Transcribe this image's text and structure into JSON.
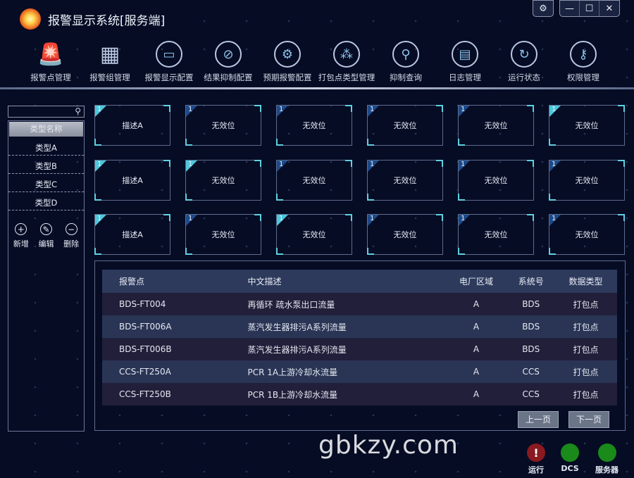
{
  "app": {
    "title": "报警显示系统[服务端]",
    "watermark": "gbkzy.com"
  },
  "window": {
    "settings": "⚙",
    "minimize": "—",
    "maximize": "☐",
    "close": "✕"
  },
  "toolbar": [
    {
      "label": "报警点管理",
      "icon": "alarm-light-icon",
      "glyph": "🚨"
    },
    {
      "label": "报警组管理",
      "icon": "grid-icon",
      "glyph": "▦"
    },
    {
      "label": "报警显示配置",
      "icon": "display-board-icon",
      "glyph": "▭"
    },
    {
      "label": "结果抑制配置",
      "icon": "prohibit-icon",
      "glyph": "⊘"
    },
    {
      "label": "预期报警配置",
      "icon": "gear-icon",
      "glyph": "⚙"
    },
    {
      "label": "打包点类型管理",
      "icon": "three-dots-icon",
      "glyph": "⁂"
    },
    {
      "label": "抑制查询",
      "icon": "search-icon",
      "glyph": "⚲"
    },
    {
      "label": "日志管理",
      "icon": "document-icon",
      "glyph": "▤"
    },
    {
      "label": "运行状态",
      "icon": "refresh-icon",
      "glyph": "↻"
    },
    {
      "label": "权限管理",
      "icon": "key-icon",
      "glyph": "⚷"
    }
  ],
  "sidebar": {
    "search_icon": "⚲",
    "header": "类型名称",
    "items": [
      "类型A",
      "类型B",
      "类型C",
      "类型D"
    ],
    "actions": [
      {
        "label": "新增",
        "glyph": "+",
        "icon": "plus-icon"
      },
      {
        "label": "编辑",
        "glyph": "✎",
        "icon": "pencil-icon"
      },
      {
        "label": "删除",
        "glyph": "−",
        "icon": "minus-icon"
      }
    ]
  },
  "cards": [
    [
      {
        "n": "1",
        "text": "描述A",
        "hl": true
      },
      {
        "n": "1",
        "text": "无效位",
        "hl": false
      },
      {
        "n": "1",
        "text": "无效位",
        "hl": false
      },
      {
        "n": "1",
        "text": "无效位",
        "hl": false
      },
      {
        "n": "1",
        "text": "无效位",
        "hl": false
      },
      {
        "n": "1",
        "text": "无效位",
        "hl": true
      }
    ],
    [
      {
        "n": "1",
        "text": "描述A",
        "hl": true
      },
      {
        "n": "1",
        "text": "无效位",
        "hl": true
      },
      {
        "n": "1",
        "text": "无效位",
        "hl": false
      },
      {
        "n": "1",
        "text": "无效位",
        "hl": false
      },
      {
        "n": "1",
        "text": "无效位",
        "hl": false
      },
      {
        "n": "1",
        "text": "无效位",
        "hl": false
      }
    ],
    [
      {
        "n": "1",
        "text": "描述A",
        "hl": true
      },
      {
        "n": "1",
        "text": "无效位",
        "hl": false
      },
      {
        "n": "1",
        "text": "无效位",
        "hl": true
      },
      {
        "n": "1",
        "text": "无效位",
        "hl": false
      },
      {
        "n": "1",
        "text": "无效位",
        "hl": false
      },
      {
        "n": "1",
        "text": "无效位",
        "hl": false
      }
    ]
  ],
  "table": {
    "columns": [
      "报警点",
      "中文描述",
      "电厂区域",
      "系统号",
      "数据类型"
    ],
    "rows": [
      [
        "BDS-FT004",
        "再循环 疏水泵出口流量",
        "A",
        "BDS",
        "打包点"
      ],
      [
        "BDS-FT006A",
        "蒸汽发生器排污A系列流量",
        "A",
        "BDS",
        "打包点"
      ],
      [
        "BDS-FT006B",
        "蒸汽发生器排污A系列流量",
        "A",
        "BDS",
        "打包点"
      ],
      [
        "CCS-FT250A",
        "PCR 1A上游冷却水流量",
        "A",
        "CCS",
        "打包点"
      ],
      [
        "CCS-FT250B",
        "PCR 1B上游冷却水流量",
        "A",
        "CCS",
        "打包点"
      ]
    ]
  },
  "pager": {
    "prev": "上一页",
    "next": "下一页"
  },
  "status": [
    {
      "label": "运行",
      "color": "#8a1a1f",
      "glyph": "!"
    },
    {
      "label": "DCS",
      "color": "#1a8a1a",
      "glyph": ""
    },
    {
      "label": "服务器",
      "color": "#1a8a1a",
      "glyph": ""
    }
  ]
}
